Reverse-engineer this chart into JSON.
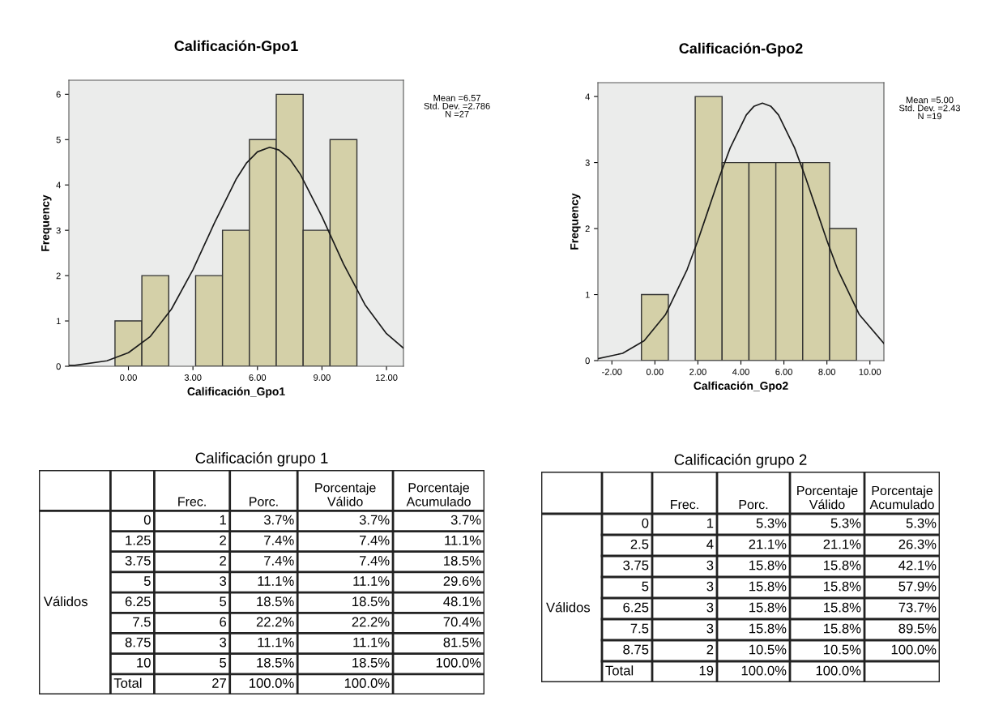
{
  "chart_data": [
    {
      "type": "histogram",
      "title": "Calificación-Gpo1",
      "xlabel": "Calificación_Gpo1",
      "ylabel": "Frequency",
      "bins": [
        -0.625,
        0.625,
        1.875,
        3.125,
        4.375,
        5.625,
        6.875,
        8.125,
        9.375,
        10.625
      ],
      "values": [
        1,
        2,
        0,
        2,
        3,
        5,
        6,
        3,
        5
      ],
      "color": "#d4d0a8",
      "series": [
        {
          "type": "line",
          "color": "#1a1a1a",
          "x": [
            -2.77,
            -2.5,
            -1,
            0,
            1,
            2,
            3,
            4,
            5,
            5.5,
            6,
            6.57,
            7,
            7.5,
            8,
            9,
            10,
            11,
            12,
            12.79
          ],
          "values": [
            0.02,
            0.02,
            0.12,
            0.3,
            0.65,
            1.26,
            2.13,
            3.16,
            4.12,
            4.49,
            4.73,
            4.83,
            4.77,
            4.57,
            4.23,
            3.3,
            2.26,
            1.36,
            0.72,
            0.4
          ]
        }
      ],
      "xlim": [
        -2.77,
        12.79
      ],
      "ylim": [
        0,
        6.31
      ],
      "xticks": [
        {
          "value": 0,
          "label": "0.00"
        },
        {
          "value": 3,
          "label": "3.00"
        },
        {
          "value": 6,
          "label": "6.00"
        },
        {
          "value": 9,
          "label": "9.00"
        },
        {
          "value": 12,
          "label": "12.00"
        }
      ],
      "yticks": [
        0,
        1,
        2,
        3,
        4,
        5,
        6
      ],
      "annotations": [
        "Mean =6.57\nStd. Dev. =2.786\nN =27"
      ]
    },
    {
      "type": "histogram",
      "title": "Calificación-Gpo2",
      "xlabel": "Calficación_Gpo2",
      "ylabel": "Frequency",
      "bins": [
        -0.625,
        0.625,
        1.875,
        3.125,
        4.375,
        5.625,
        6.875,
        8.125,
        9.375
      ],
      "values": [
        1,
        0,
        4,
        3,
        3,
        3,
        3,
        2
      ],
      "color": "#d4d0a8",
      "series": [
        {
          "type": "line",
          "color": "#1a1a1a",
          "x": [
            -2.65,
            -1.5,
            -0.5,
            0.5,
            1.5,
            2,
            2.5,
            3,
            3.5,
            4.25,
            4.6,
            5,
            5.4,
            5.75,
            6.5,
            7,
            7.5,
            8,
            8.5,
            9.5,
            10.65
          ],
          "values": [
            0.03,
            0.11,
            0.3,
            0.7,
            1.38,
            1.82,
            2.3,
            2.78,
            3.22,
            3.72,
            3.85,
            3.9,
            3.85,
            3.72,
            3.22,
            2.78,
            2.3,
            1.82,
            1.38,
            0.7,
            0.26
          ]
        }
      ],
      "xlim": [
        -2.65,
        10.65
      ],
      "ylim": [
        0,
        4.21
      ],
      "xticks": [
        {
          "value": -2,
          "label": "-2.00"
        },
        {
          "value": 0,
          "label": "0.00"
        },
        {
          "value": 2,
          "label": "2.00"
        },
        {
          "value": 4,
          "label": "4.00"
        },
        {
          "value": 6,
          "label": "6.00"
        },
        {
          "value": 8,
          "label": "8.00"
        },
        {
          "value": 10,
          "label": "10.00"
        }
      ],
      "yticks": [
        0,
        1,
        2,
        3,
        4
      ],
      "annotations": [
        "Mean =5.00\nStd. Dev. =2.43\nN =19"
      ]
    },
    {
      "type": "other",
      "title": "Calificación grupo 1",
      "cell_labels": [
        [
          null,
          null,
          "Frec.",
          "Porc.",
          "Porcentaje\nVálido",
          "Porcentaje\nAcumulado"
        ],
        [
          null,
          "0",
          "1",
          "3.7%",
          "3.7%",
          "3.7%"
        ],
        [
          null,
          "1.25",
          "2",
          "7.4%",
          "7.4%",
          "11.1%"
        ],
        [
          null,
          "3.75",
          "2",
          "7.4%",
          "7.4%",
          "18.5%"
        ],
        [
          null,
          "5",
          "3",
          "11.1%",
          "11.1%",
          "29.6%"
        ],
        [
          "Válidos",
          "6.25",
          "5",
          "18.5%",
          "18.5%",
          "48.1%"
        ],
        [
          null,
          "7.5",
          "6",
          "22.2%",
          "22.2%",
          "70.4%"
        ],
        [
          null,
          "8.75",
          "3",
          "11.1%",
          "11.1%",
          "81.5%"
        ],
        [
          null,
          "10",
          "5",
          "18.5%",
          "18.5%",
          "100.0%"
        ],
        [
          null,
          "Total",
          "27",
          "100.0%",
          "100.0%",
          null
        ]
      ]
    },
    {
      "type": "other",
      "title": "Calificación grupo 2",
      "cell_labels": [
        [
          null,
          null,
          "Frec.",
          "Porc.",
          "Porcentaje\nVálido",
          "Porcentaje\nAcumulado"
        ],
        [
          null,
          "0",
          "1",
          "5.3%",
          "5.3%",
          "5.3%"
        ],
        [
          null,
          "2.5",
          "4",
          "21.1%",
          "21.1%",
          "26.3%"
        ],
        [
          null,
          "3.75",
          "3",
          "15.8%",
          "15.8%",
          "42.1%"
        ],
        [
          null,
          "5",
          "3",
          "15.8%",
          "15.8%",
          "57.9%"
        ],
        [
          "Válidos",
          "6.25",
          "3",
          "15.8%",
          "15.8%",
          "73.7%"
        ],
        [
          null,
          "7.5",
          "3",
          "15.8%",
          "15.8%",
          "89.5%"
        ],
        [
          null,
          "8.75",
          "2",
          "10.5%",
          "10.5%",
          "100.0%"
        ],
        [
          null,
          "Total",
          "19",
          "100.0%",
          "100.0%",
          null
        ]
      ]
    }
  ]
}
